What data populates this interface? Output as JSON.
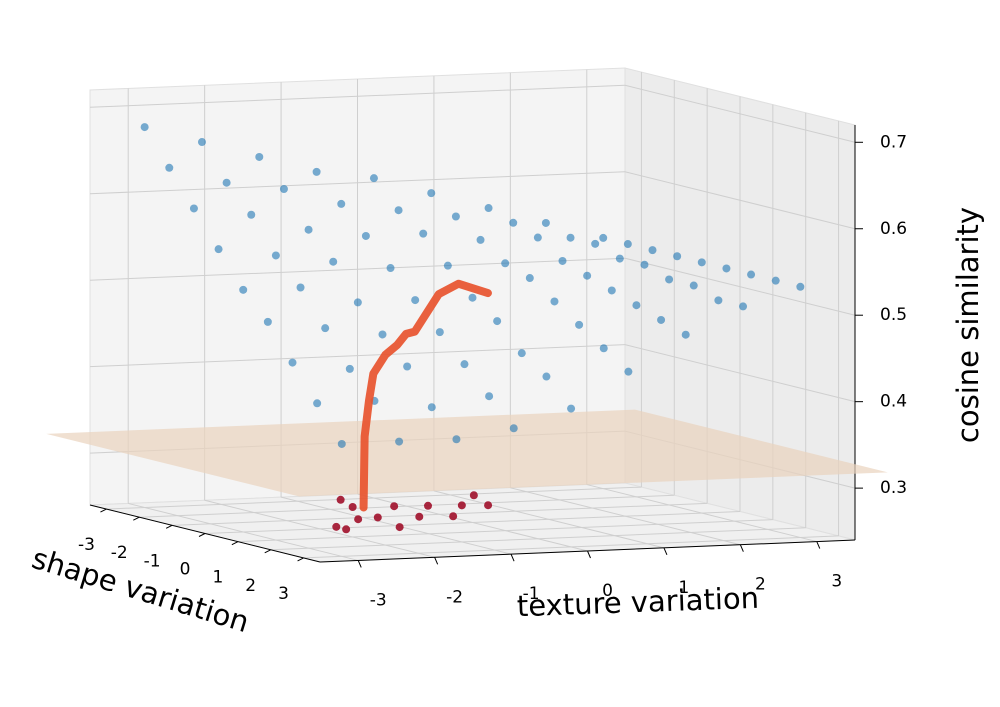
{
  "chart_data": {
    "type": "scatter3d",
    "xlabel": "shape variation",
    "ylabel": "texture variation",
    "zlabel": "cosine similarity",
    "xlim": [
      -3.5,
      3.5
    ],
    "ylim": [
      -3.5,
      3.5
    ],
    "zlim": [
      0.24,
      0.72
    ],
    "xticks": [
      -3,
      -2,
      -1,
      0,
      1,
      2,
      3
    ],
    "yticks": [
      -3,
      -2,
      -1,
      0,
      1,
      2,
      3
    ],
    "zticks": [
      0.3,
      0.4,
      0.5,
      0.6,
      0.7
    ],
    "grid": true,
    "plane": {
      "color": "#e9d3bd",
      "z": 0.32
    },
    "surface": {
      "color": "#1f77b4",
      "x": [
        -3,
        -2.25,
        -1.5,
        -0.75,
        0,
        0.75,
        1.5,
        2.25,
        3
      ],
      "y": [
        -3,
        -2.25,
        -1.5,
        -0.75,
        0,
        0.75,
        1.5,
        2.25,
        3
      ],
      "z": [
        [
          0.68,
          0.64,
          0.6,
          0.56,
          0.52,
          0.49,
          0.45,
          0.41,
          0.37
        ],
        [
          0.66,
          0.62,
          0.59,
          0.55,
          0.52,
          0.48,
          0.44,
          0.41,
          0.37
        ],
        [
          0.64,
          0.61,
          0.57,
          0.54,
          0.5,
          0.47,
          0.44,
          0.4,
          0.37
        ],
        [
          0.62,
          0.59,
          0.56,
          0.53,
          0.5,
          0.47,
          0.44,
          0.41,
          0.38
        ],
        [
          0.61,
          0.58,
          0.56,
          0.53,
          0.5,
          0.48,
          0.45,
          0.43,
          0.4
        ],
        [
          0.59,
          0.57,
          0.55,
          0.53,
          0.52,
          0.5,
          0.48,
          0.46,
          0.44
        ],
        [
          0.57,
          0.56,
          0.55,
          0.53,
          0.52,
          0.51,
          0.5,
          0.49,
          0.48
        ],
        [
          0.55,
          0.54,
          0.54,
          0.53,
          0.53,
          0.52,
          0.52,
          0.51,
          0.51
        ],
        [
          0.53,
          0.53,
          0.53,
          0.53,
          0.53,
          0.53,
          0.53,
          0.53,
          0.53
        ]
      ]
    },
    "path": {
      "color": "#e8502a",
      "x": [
        2.5,
        2.4,
        2.3,
        2.2,
        2.1,
        2.0,
        1.9,
        1.7,
        1.5,
        1.4,
        1.3,
        1.2,
        1.4
      ],
      "y": [
        -2.5,
        -2.45,
        -2.4,
        -2.3,
        -2.2,
        -2.0,
        -1.8,
        -1.6,
        -1.4,
        -1.2,
        -1.0,
        -0.7,
        -0.4
      ],
      "z": [
        0.29,
        0.33,
        0.37,
        0.41,
        0.44,
        0.46,
        0.47,
        0.48,
        0.48,
        0.5,
        0.52,
        0.53,
        0.52
      ]
    },
    "cluster": {
      "color": "#a0102a",
      "x": [
        2.6,
        2.8,
        2.4,
        2.7,
        2.9,
        2.5,
        2.8,
        2.6,
        2.9,
        2.7,
        2.5,
        2.9,
        2.6,
        2.8
      ],
      "y": [
        -2.9,
        -2.7,
        -2.6,
        -2.4,
        -2.2,
        -2.1,
        -1.9,
        -1.7,
        -1.5,
        -1.3,
        -2.8,
        -2.9,
        -1.1,
        -1.0
      ],
      "z": [
        0.27,
        0.28,
        0.29,
        0.28,
        0.27,
        0.29,
        0.28,
        0.29,
        0.28,
        0.29,
        0.3,
        0.27,
        0.3,
        0.29
      ]
    }
  }
}
